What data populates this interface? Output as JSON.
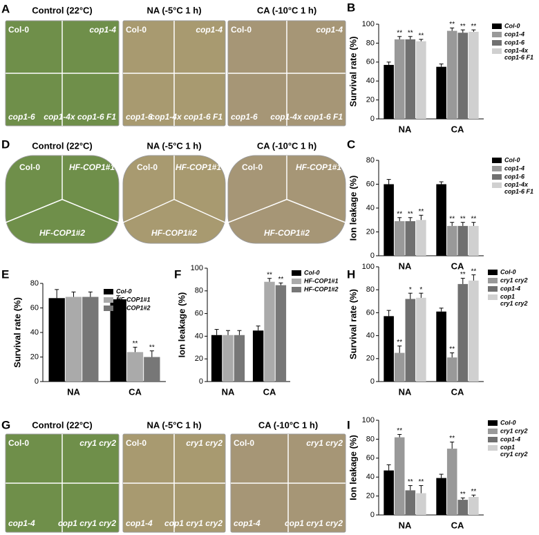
{
  "photo_panels": [
    {
      "letter": "A",
      "titles": [
        "Control (22°C)",
        "NA (-5°C 1 h)",
        "CA (-10°C 1 h)"
      ],
      "labels": [
        "Col-0",
        "cop1-4",
        "cop1-6",
        "cop1-4x cop1-6 F1"
      ]
    },
    {
      "letter": "D",
      "titles": [
        "Control (22°C)",
        "NA (-5°C 1 h)",
        "CA (-10°C 1 h)"
      ],
      "labels": [
        "Col-0",
        "HF-COP1#1",
        "HF-COP1#2"
      ]
    },
    {
      "letter": "G",
      "titles": [
        "Control (22°C)",
        "NA (-5°C 1 h)",
        "CA (-10°C 1 h)"
      ],
      "labels": [
        "Col-0",
        "cry1 cry2",
        "cop1-4",
        "cop1 cry1 cry2"
      ]
    }
  ],
  "chart_data": [
    {
      "type": "bar",
      "panel": "B",
      "y_label": "Survival rate (%)",
      "categories": [
        "NA",
        "CA"
      ],
      "ylim": [
        0,
        100
      ],
      "yticks": [
        0,
        20,
        40,
        60,
        80,
        100
      ],
      "series": [
        {
          "name": "Col-0",
          "color": "#000000",
          "values": [
            57,
            55
          ],
          "errors": [
            3,
            3
          ]
        },
        {
          "name": "cop1-4",
          "color": "#999999",
          "values": [
            84,
            93
          ],
          "errors": [
            3,
            3
          ],
          "sig": [
            "**",
            "**"
          ]
        },
        {
          "name": "cop1-6",
          "color": "#707070",
          "values": [
            84,
            91
          ],
          "errors": [
            3,
            3
          ],
          "sig": [
            "**",
            "**"
          ]
        },
        {
          "name": "cop1-4x cop1-6 F1",
          "color": "#d0d0d0",
          "values": [
            82,
            92
          ],
          "errors": [
            2,
            2
          ],
          "sig": [
            "**",
            "**"
          ]
        }
      ]
    },
    {
      "type": "bar",
      "panel": "C",
      "y_label": "Ion leakage (%)",
      "categories": [
        "NA",
        "CA"
      ],
      "ylim": [
        0,
        80
      ],
      "yticks": [
        0,
        20,
        40,
        60,
        80
      ],
      "series": [
        {
          "name": "Col-0",
          "color": "#000000",
          "values": [
            60,
            60
          ],
          "errors": [
            4,
            2
          ]
        },
        {
          "name": "cop1-4",
          "color": "#999999",
          "values": [
            29,
            25
          ],
          "errors": [
            3,
            3
          ],
          "sig": [
            "**",
            "**"
          ]
        },
        {
          "name": "cop1-6",
          "color": "#707070",
          "values": [
            29,
            25
          ],
          "errors": [
            3,
            3
          ],
          "sig": [
            "**",
            "**"
          ]
        },
        {
          "name": "cop1-4x cop1-6 F1",
          "color": "#d0d0d0",
          "values": [
            30,
            25
          ],
          "errors": [
            4,
            3
          ],
          "sig": [
            "**",
            "**"
          ]
        }
      ]
    },
    {
      "type": "bar",
      "panel": "E",
      "y_label": "Survival rate (%)",
      "categories": [
        "NA",
        "CA"
      ],
      "ylim": [
        0,
        80
      ],
      "yticks": [
        0,
        20,
        40,
        60,
        80
      ],
      "series": [
        {
          "name": "Col-0",
          "color": "#000000",
          "values": [
            68,
            67
          ],
          "errors": [
            7,
            3
          ]
        },
        {
          "name": "HF-COP1#1",
          "color": "#aaaaaa",
          "values": [
            69,
            24
          ],
          "errors": [
            4,
            4
          ],
          "sig": [
            null,
            "**"
          ]
        },
        {
          "name": "HF-COP1#2",
          "color": "#777777",
          "values": [
            69,
            20
          ],
          "errors": [
            4,
            5
          ],
          "sig": [
            null,
            "**"
          ]
        }
      ]
    },
    {
      "type": "bar",
      "panel": "F",
      "y_label": "Ion leakage (%)",
      "categories": [
        "NA",
        "CA"
      ],
      "ylim": [
        0,
        100
      ],
      "yticks": [
        0,
        20,
        40,
        60,
        80,
        100
      ],
      "series": [
        {
          "name": "Col-0",
          "color": "#000000",
          "values": [
            41,
            45
          ],
          "errors": [
            5,
            4
          ]
        },
        {
          "name": "HF-COP1#1",
          "color": "#aaaaaa",
          "values": [
            41,
            88
          ],
          "errors": [
            4,
            3
          ],
          "sig": [
            null,
            "**"
          ]
        },
        {
          "name": "HF-COP1#2",
          "color": "#777777",
          "values": [
            41,
            85
          ],
          "errors": [
            4,
            2
          ],
          "sig": [
            null,
            "**"
          ]
        }
      ]
    },
    {
      "type": "bar",
      "panel": "H",
      "y_label": "Survival rate (%)",
      "categories": [
        "NA",
        "CA"
      ],
      "ylim": [
        0,
        100
      ],
      "yticks": [
        0,
        20,
        40,
        60,
        80,
        100
      ],
      "series": [
        {
          "name": "Col-0",
          "color": "#000000",
          "values": [
            57,
            61
          ],
          "errors": [
            5,
            3
          ]
        },
        {
          "name": "cry1 cry2",
          "color": "#999999",
          "values": [
            25,
            21
          ],
          "errors": [
            6,
            4
          ],
          "sig": [
            "**",
            "**"
          ]
        },
        {
          "name": "cop1-4",
          "color": "#707070",
          "values": [
            72,
            85
          ],
          "errors": [
            5,
            5
          ],
          "sig": [
            "*",
            "**"
          ]
        },
        {
          "name": "cop1 cry1 cry2",
          "color": "#d0d0d0",
          "values": [
            73,
            88
          ],
          "errors": [
            4,
            5
          ],
          "sig": [
            "*",
            "**"
          ]
        }
      ]
    },
    {
      "type": "bar",
      "panel": "I",
      "y_label": "Ion leakage (%)",
      "categories": [
        "NA",
        "CA"
      ],
      "ylim": [
        0,
        100
      ],
      "yticks": [
        0,
        20,
        40,
        60,
        80,
        100
      ],
      "series": [
        {
          "name": "Col-0",
          "color": "#000000",
          "values": [
            47,
            39
          ],
          "errors": [
            6,
            4
          ]
        },
        {
          "name": "cry1 cry2",
          "color": "#999999",
          "values": [
            82,
            70
          ],
          "errors": [
            3,
            7
          ],
          "sig": [
            "**",
            "**"
          ]
        },
        {
          "name": "cop1-4",
          "color": "#707070",
          "values": [
            26,
            16
          ],
          "errors": [
            5,
            2
          ],
          "sig": [
            "**",
            "**"
          ]
        },
        {
          "name": "cop1 cry1 cry2",
          "color": "#d0d0d0",
          "values": [
            23,
            19
          ],
          "errors": [
            8,
            2
          ],
          "sig": [
            "**",
            "**"
          ]
        }
      ]
    }
  ]
}
